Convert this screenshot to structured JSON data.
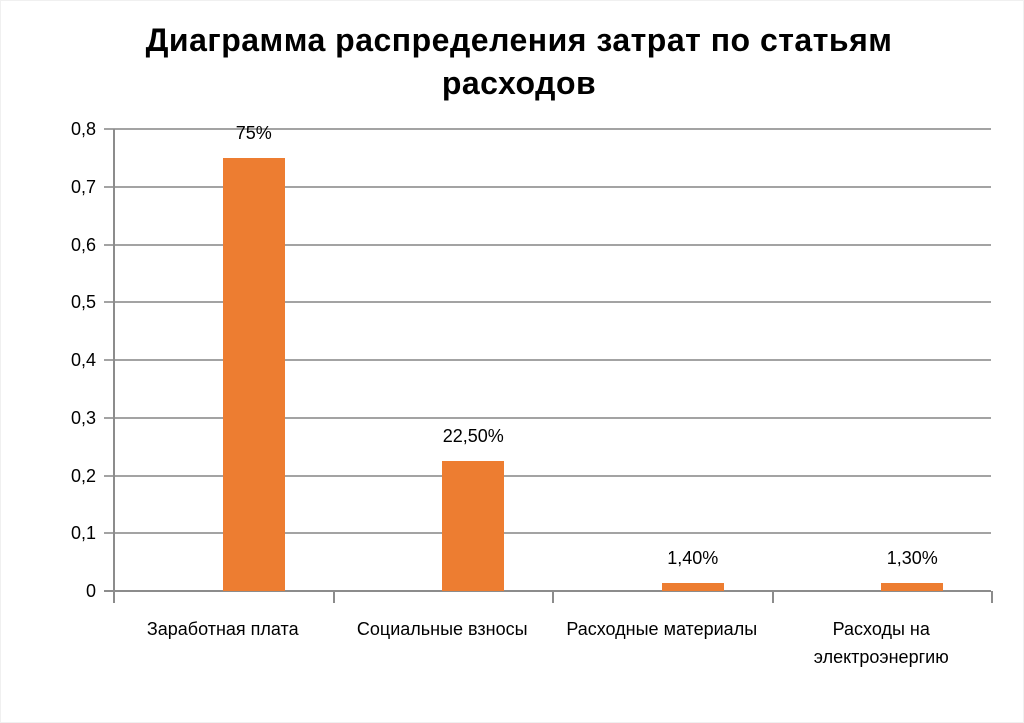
{
  "chart_data": {
    "type": "bar",
    "title": "Диаграмма распределения затрат по статьям\nрасходов",
    "categories": [
      "Заработная плата",
      "Социальные взносы",
      "Расходные материалы",
      "Расходы на\nэлектроэнергию"
    ],
    "values": [
      0.75,
      0.225,
      0.014,
      0.013
    ],
    "value_labels": [
      "75%",
      "22,50%",
      "1,40%",
      "1,30%"
    ],
    "ylim": [
      0,
      0.8
    ],
    "yticks": [
      {
        "v": 0.0,
        "label": "0"
      },
      {
        "v": 0.1,
        "label": "0,1"
      },
      {
        "v": 0.2,
        "label": "0,2"
      },
      {
        "v": 0.3,
        "label": "0,3"
      },
      {
        "v": 0.4,
        "label": "0,4"
      },
      {
        "v": 0.5,
        "label": "0,5"
      },
      {
        "v": 0.6,
        "label": "0,6"
      },
      {
        "v": 0.7,
        "label": "0,7"
      },
      {
        "v": 0.8,
        "label": "0,8"
      }
    ],
    "grid": "horizontal",
    "legend": "none",
    "bar_color": "#ED7D31",
    "gridline_color": "#A3A3A3",
    "axis_color": "#8C8C8C",
    "text_color": "#000000"
  }
}
